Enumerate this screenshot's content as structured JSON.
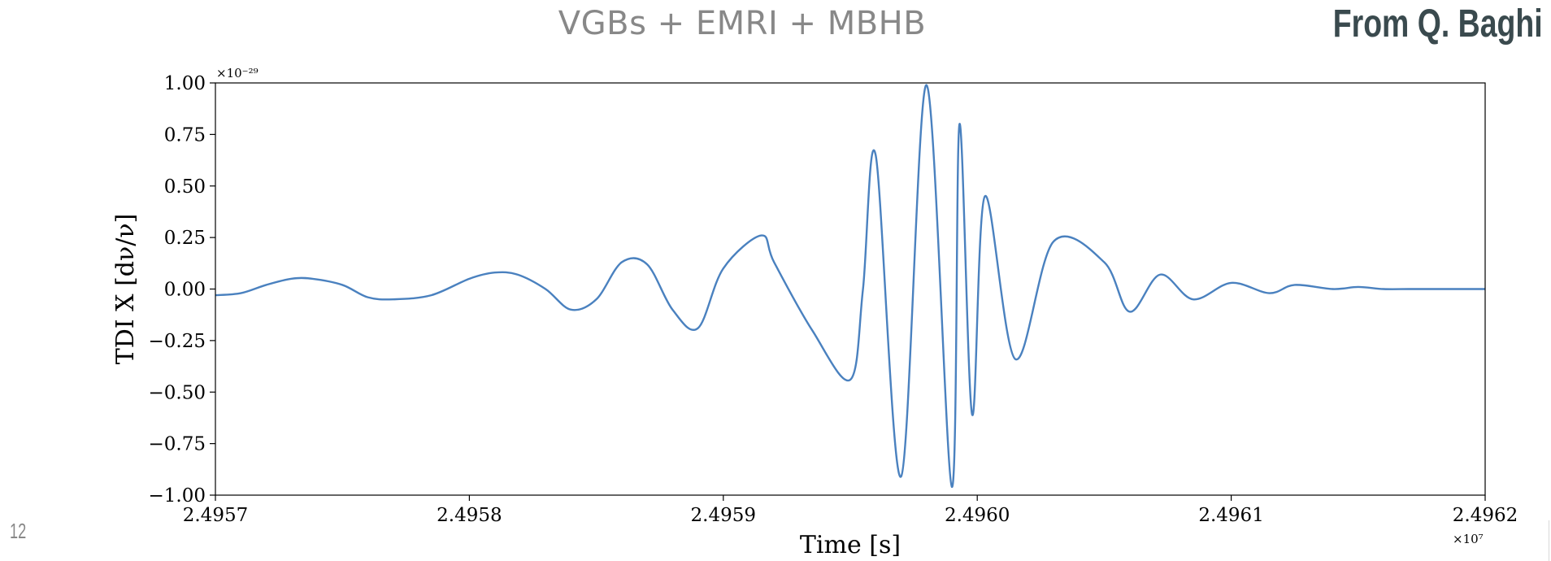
{
  "slide": {
    "title": "VGBs + EMRI + MBHB",
    "credit": "From Q. Baghi",
    "page_number": "12"
  },
  "colors": {
    "series": "#4a81bf",
    "title": "#888888",
    "credit": "#3a4a4e"
  },
  "chart_data": {
    "type": "line",
    "title": "",
    "xlabel": "Time [s]",
    "ylabel": "TDI X [dν/ν]",
    "x_multiplier_label": "×10⁷",
    "y_multiplier_label": "×10⁻²⁹",
    "xlim": [
      2.4957,
      2.4962
    ],
    "ylim": [
      -1.0,
      1.0
    ],
    "x_ticks": [
      2.4957,
      2.4958,
      2.4959,
      2.496,
      2.4961,
      2.4962
    ],
    "x_tick_labels": [
      "2.4957",
      "2.4958",
      "2.4959",
      "2.4960",
      "2.4961",
      "2.4962"
    ],
    "y_ticks": [
      1.0,
      0.75,
      0.5,
      0.25,
      0.0,
      -0.25,
      -0.5,
      -0.75,
      -1.0
    ],
    "y_tick_labels": [
      "1.00",
      "0.75",
      "0.50",
      "0.25",
      "0.00",
      "−0.25",
      "−0.50",
      "−0.75",
      "−1.00"
    ],
    "grid": false,
    "series": [
      {
        "x": [
          2.4957,
          2.49571,
          2.49572,
          2.49573,
          2.495738,
          2.49575,
          2.49576,
          2.49577,
          2.495785,
          2.4958,
          2.49581,
          2.495819,
          2.49583,
          2.49584,
          2.49585,
          2.49586,
          2.49587,
          2.49588,
          2.49589,
          2.4959,
          2.495915,
          2.49592,
          2.495935,
          2.49595,
          2.495955,
          2.49596,
          2.49597,
          2.49598,
          2.49599,
          2.495993,
          2.495998,
          2.496003,
          2.496015,
          2.49603,
          2.49605,
          2.49606,
          2.496072,
          2.496085,
          2.4961,
          2.496115,
          2.496125,
          2.49614,
          2.49615,
          2.49616,
          2.49617,
          2.49618,
          2.4962
        ],
        "y": [
          -0.03,
          -0.02,
          0.02,
          0.05,
          0.05,
          0.02,
          -0.04,
          -0.05,
          -0.03,
          0.05,
          0.08,
          0.07,
          0.0,
          -0.1,
          -0.05,
          0.13,
          0.12,
          -0.1,
          -0.19,
          0.1,
          0.26,
          0.13,
          -0.2,
          -0.44,
          0.0,
          0.65,
          -0.91,
          0.99,
          -0.96,
          0.8,
          -0.61,
          0.45,
          -0.34,
          0.23,
          0.13,
          -0.11,
          0.07,
          -0.05,
          0.03,
          -0.02,
          0.02,
          0.0,
          0.01,
          0.0,
          0.0,
          0.0,
          0.0
        ]
      }
    ]
  }
}
